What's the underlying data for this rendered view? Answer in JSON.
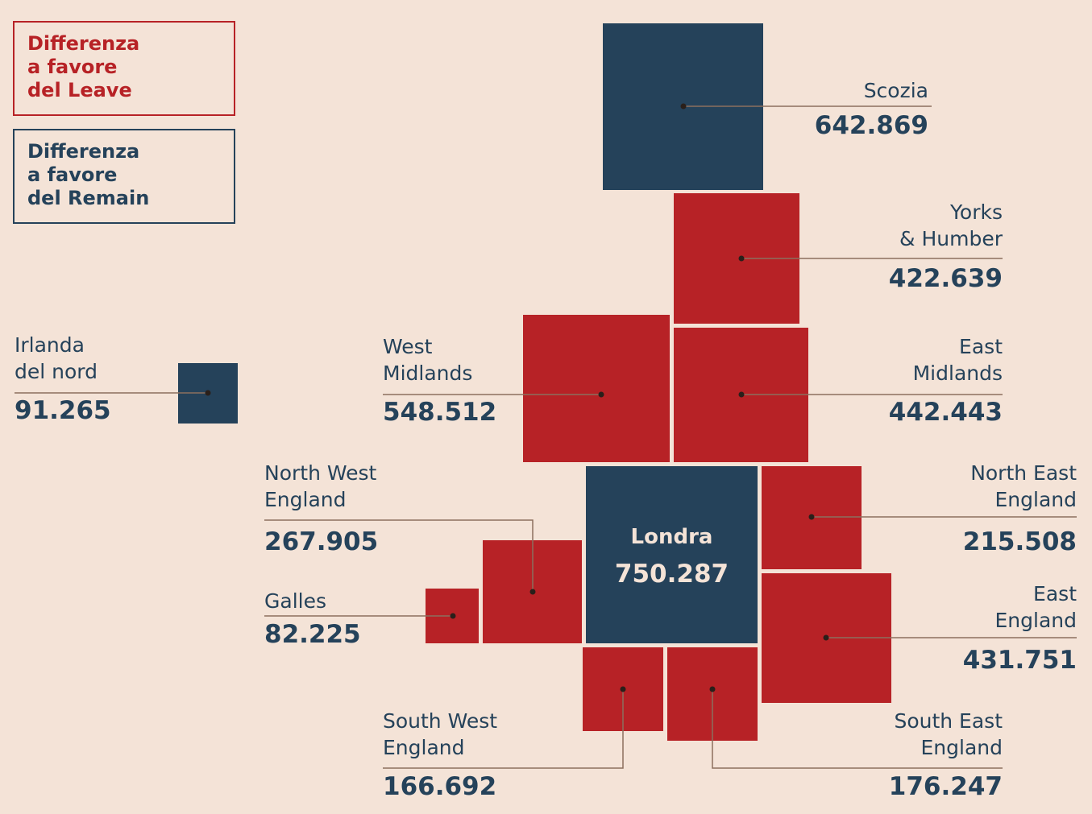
{
  "legend": {
    "leave": [
      "Differenza",
      "a favore",
      "del Leave"
    ],
    "remain": [
      "Differenza",
      "a favore",
      "del Remain"
    ]
  },
  "colors": {
    "background": "#f4e3d7",
    "leave": "#b72226",
    "remain": "#25425a",
    "leader_line": "#8c6f5e"
  },
  "regions": {
    "scozia": {
      "name": [
        "Scozia"
      ],
      "value": "642.869",
      "side": "remain"
    },
    "yorks": {
      "name": [
        "Yorks",
        "& Humber"
      ],
      "value": "422.639",
      "side": "leave"
    },
    "west_midlands": {
      "name": [
        "West",
        "Midlands"
      ],
      "value": "548.512",
      "side": "leave"
    },
    "east_midlands": {
      "name": [
        "East",
        "Midlands"
      ],
      "value": "442.443",
      "side": "leave"
    },
    "irlanda": {
      "name": [
        "Irlanda",
        "del nord"
      ],
      "value": "91.265",
      "side": "remain"
    },
    "north_west": {
      "name": [
        "North West",
        "England"
      ],
      "value": "267.905",
      "side": "leave"
    },
    "north_east": {
      "name": [
        "North East",
        "England"
      ],
      "value": "215.508",
      "side": "leave"
    },
    "londra": {
      "name": [
        "Londra"
      ],
      "value": "750.287",
      "side": "remain"
    },
    "galles": {
      "name": [
        "Galles"
      ],
      "value": "82.225",
      "side": "leave"
    },
    "east_england": {
      "name": [
        "East",
        "England"
      ],
      "value": "431.751",
      "side": "leave"
    },
    "south_west": {
      "name": [
        "South West",
        "England"
      ],
      "value": "166.692",
      "side": "leave"
    },
    "south_east": {
      "name": [
        "South East",
        "England"
      ],
      "value": "176.247",
      "side": "leave"
    }
  }
}
